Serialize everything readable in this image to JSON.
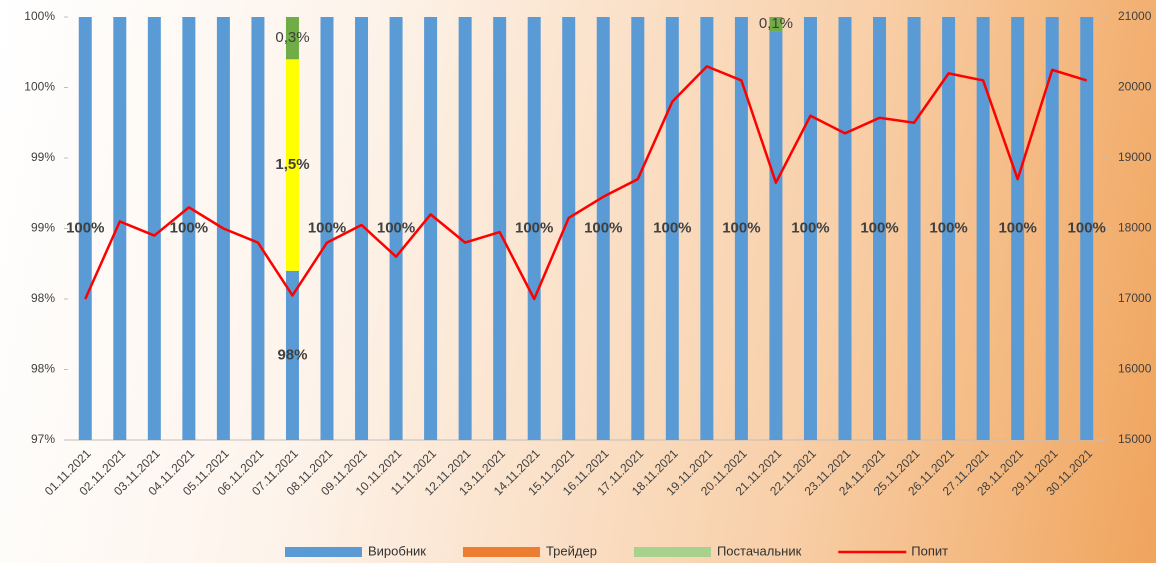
{
  "chart_data": {
    "type": "bar",
    "categories": [
      "01.11.2021",
      "02.11.2021",
      "03.11.2021",
      "04.11.2021",
      "05.11.2021",
      "06.11.2021",
      "07.11.2021",
      "08.11.2021",
      "09.11.2021",
      "10.11.2021",
      "11.11.2021",
      "12.11.2021",
      "13.11.2021",
      "14.11.2021",
      "15.11.2021",
      "16.11.2021",
      "17.11.2021",
      "18.11.2021",
      "19.11.2021",
      "20.11.2021",
      "21.11.2021",
      "22.11.2021",
      "23.11.2021",
      "24.11.2021",
      "25.11.2021",
      "26.11.2021",
      "27.11.2021",
      "28.11.2021",
      "29.11.2021",
      "30.11.2021"
    ],
    "series": [
      {
        "name": "Виробник",
        "color": "#5b9bd5",
        "values": [
          100,
          100,
          100,
          100,
          100,
          100,
          98.2,
          100,
          100,
          100,
          100,
          100,
          100,
          100,
          100,
          100,
          100,
          100,
          100,
          100,
          99.9,
          100,
          100,
          100,
          100,
          100,
          100,
          100,
          100,
          100
        ],
        "value_labels": [
          "100%",
          null,
          null,
          "100%",
          null,
          null,
          "98%",
          "100%",
          null,
          "100%",
          null,
          null,
          null,
          "100%",
          null,
          "100%",
          null,
          "100%",
          null,
          "100%",
          null,
          "100%",
          null,
          "100%",
          null,
          "100%",
          null,
          "100%",
          null,
          "100%"
        ]
      },
      {
        "name": "Трейдер",
        "color": "#ed7d31",
        "bar_color": "#ffff00",
        "values": [
          0,
          0,
          0,
          0,
          0,
          0,
          1.5,
          0,
          0,
          0,
          0,
          0,
          0,
          0,
          0,
          0,
          0,
          0,
          0,
          0,
          0,
          0,
          0,
          0,
          0,
          0,
          0,
          0,
          0,
          0
        ],
        "value_labels": [
          null,
          null,
          null,
          null,
          null,
          null,
          "1,5%",
          null,
          null,
          null,
          null,
          null,
          null,
          null,
          null,
          null,
          null,
          null,
          null,
          null,
          null,
          null,
          null,
          null,
          null,
          null,
          null,
          null,
          null,
          null
        ]
      },
      {
        "name": "Постачальник",
        "color": "#a9d18e",
        "bar_color": "#70ad47",
        "values": [
          0,
          0,
          0,
          0,
          0,
          0,
          0.3,
          0,
          0,
          0,
          0,
          0,
          0,
          0,
          0,
          0,
          0,
          0,
          0,
          0,
          0.1,
          0,
          0,
          0,
          0,
          0,
          0,
          0,
          0,
          0
        ],
        "value_labels": [
          null,
          null,
          null,
          null,
          null,
          null,
          "0,3%",
          null,
          null,
          null,
          null,
          null,
          null,
          null,
          null,
          null,
          null,
          null,
          null,
          null,
          "0,1%",
          null,
          null,
          null,
          null,
          null,
          null,
          null,
          null,
          null
        ]
      },
      {
        "name": "Попит",
        "color": "#ff0000",
        "type": "line",
        "axis": "y2",
        "values": [
          17000,
          18100,
          17900,
          18300,
          18000,
          17800,
          17050,
          17800,
          18050,
          17600,
          18200,
          17800,
          17950,
          17000,
          18150,
          18450,
          18700,
          19800,
          20300,
          20100,
          18650,
          19600,
          19350,
          19570,
          19500,
          20200,
          20100,
          18700,
          20250,
          20100
        ]
      }
    ],
    "ylim": [
      97,
      100
    ],
    "yticks": [
      {
        "value": 97,
        "label": "97%"
      },
      {
        "value": 97.5,
        "label": "98%"
      },
      {
        "value": 98,
        "label": "98%"
      },
      {
        "value": 98.5,
        "label": "99%"
      },
      {
        "value": 99,
        "label": "99%"
      },
      {
        "value": 99.5,
        "label": "100%"
      },
      {
        "value": 100,
        "label": "100%"
      }
    ],
    "y2lim": [
      15000,
      21000
    ],
    "y2ticks": [
      15000,
      16000,
      17000,
      18000,
      19000,
      20000,
      21000
    ],
    "stacked": true,
    "legend": "bottom"
  }
}
